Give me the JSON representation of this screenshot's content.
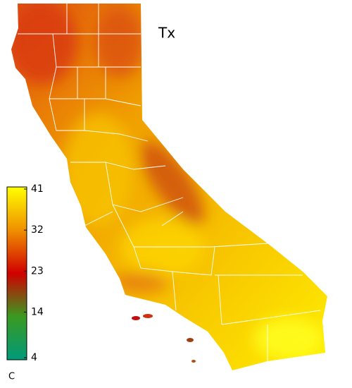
{
  "map": {
    "title": "Tx",
    "colorbar": {
      "lim": [
        4,
        41
      ],
      "ticks": [
        41,
        32,
        23,
        14,
        4
      ],
      "unit": "C"
    }
  }
}
